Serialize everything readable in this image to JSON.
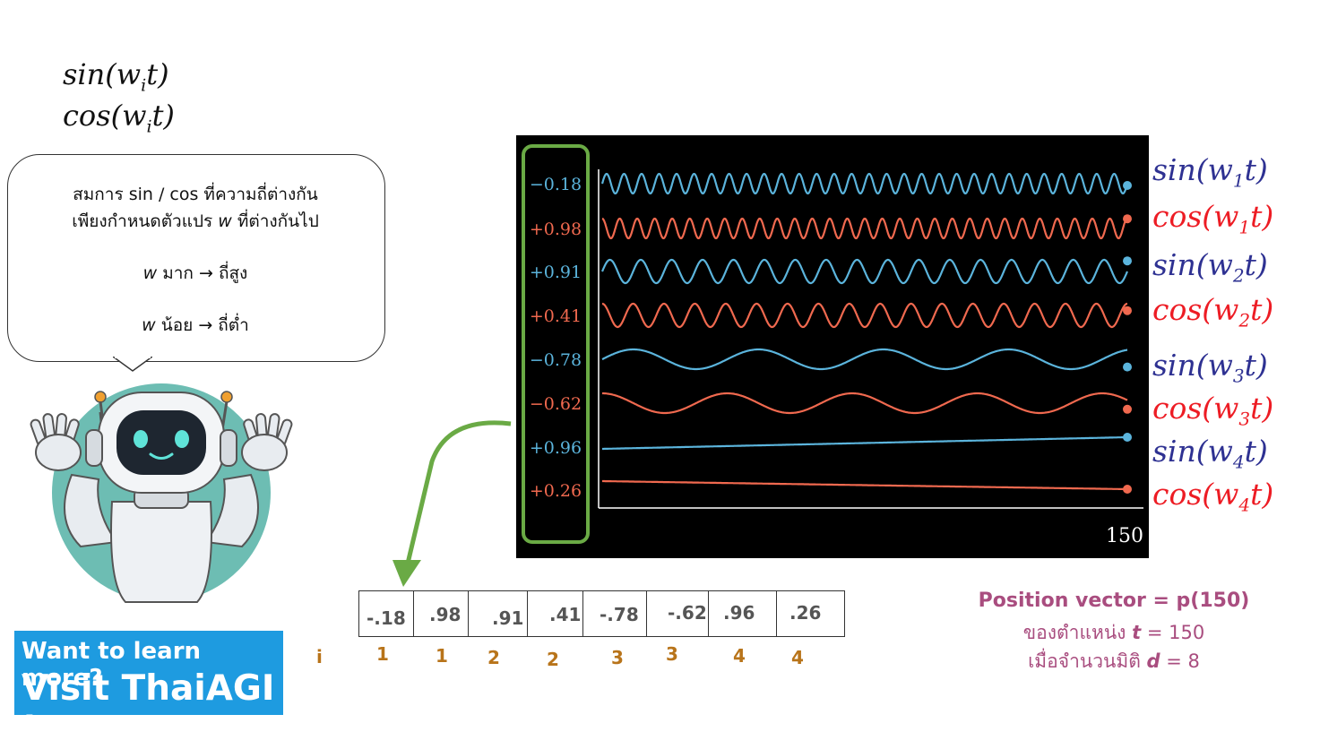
{
  "formulas": {
    "sin": "sin(w",
    "sin_sub": "i",
    "sin_end": "t)",
    "cos": "cos(w",
    "cos_sub": "i",
    "cos_end": "t)"
  },
  "bubble": {
    "line1": "สมการ sin / cos ที่ความถี่ต่างกัน",
    "line2_pre": "เพียงกำหนดตัวแปร ",
    "line2_var": "w",
    "line2_post": " ที่ต่างกันไป",
    "line3_var": "w",
    "line3_post": " มาก → ถี่สูง",
    "line4_var": "w",
    "line4_post": " น้อย → ถี่ต่ำ"
  },
  "chart_data": {
    "type": "line",
    "x_end_label": "150",
    "x_range": [
      0,
      150
    ],
    "series": [
      {
        "name": "sin(w1t)",
        "func": "sin",
        "index": "1",
        "value_label": "−0.18",
        "value": -0.18,
        "cycles": 30,
        "color": "#5bb4dc"
      },
      {
        "name": "cos(w1t)",
        "func": "cos",
        "index": "1",
        "value_label": "+0.98",
        "value": 0.98,
        "cycles": 30,
        "color": "#f0694f"
      },
      {
        "name": "sin(w2t)",
        "func": "sin",
        "index": "2",
        "value_label": "+0.91",
        "value": 0.91,
        "cycles": 17,
        "color": "#5bb4dc"
      },
      {
        "name": "cos(w2t)",
        "func": "cos",
        "index": "2",
        "value_label": "+0.41",
        "value": 0.41,
        "cycles": 17,
        "color": "#f0694f"
      },
      {
        "name": "sin(w3t)",
        "func": "sin",
        "index": "3",
        "value_label": "−0.78",
        "value": -0.78,
        "cycles": 4.2,
        "color": "#5bb4dc"
      },
      {
        "name": "cos(w3t)",
        "func": "cos",
        "index": "3",
        "value_label": "−0.62",
        "value": -0.62,
        "cycles": 4.2,
        "color": "#f0694f"
      },
      {
        "name": "sin(w4t)",
        "func": "sin",
        "index": "4",
        "value_label": "+0.96",
        "value": 0.96,
        "cycles": 0,
        "color": "#5bb4dc"
      },
      {
        "name": "cos(w4t)",
        "func": "cos",
        "index": "4",
        "value_label": "+0.26",
        "value": 0.26,
        "cycles": 0,
        "color": "#f0694f"
      }
    ],
    "label_colors": {
      "sin": "#2e3192",
      "cos": "#ed1c24"
    },
    "highlight_color": "#6aaa45"
  },
  "vector": {
    "values": [
      "-.18",
      ".98",
      ".91",
      ".41",
      "-.78",
      "-.62",
      ".96",
      ".26"
    ],
    "index_header": "i",
    "indices": [
      "1",
      "1",
      "2",
      "2",
      "3",
      "3",
      "4",
      "4"
    ]
  },
  "position": {
    "title": "Position vector = p(150)",
    "line1_pre": "ของตำแหน่ง ",
    "line1_var": "t",
    "line1_post": " = 150",
    "line2_pre": "เมื่อจำนวนมิติ ",
    "line2_var": "d",
    "line2_post": " = 8"
  },
  "promo": {
    "line1": "Want to learn more?",
    "line2": "Visit ThaiAGI !"
  }
}
